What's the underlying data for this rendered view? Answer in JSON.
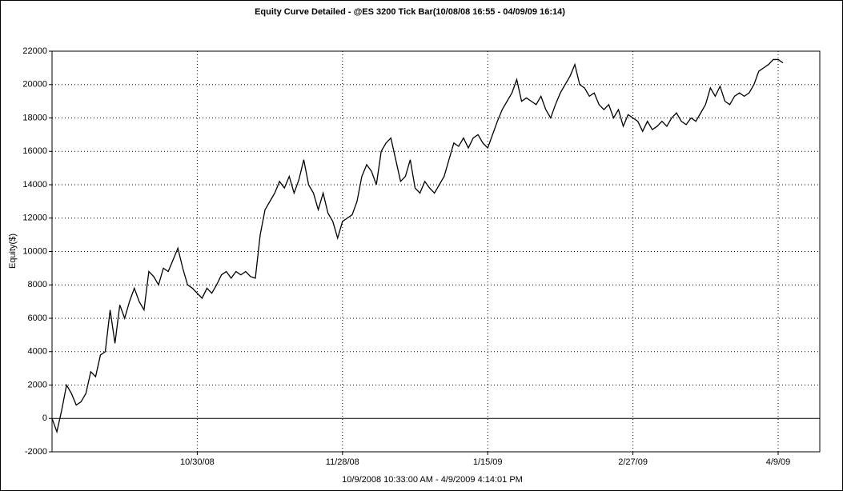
{
  "chart_data": {
    "type": "line",
    "title": "Equity Curve Detailed - @ES 3200 Tick Bar(10/08/08 16:55 - 04/09/09 16:14)",
    "x_label": "10/9/2008 10:33:00 AM - 4/9/2009 4:14:01 PM",
    "y_label": "Equity($)",
    "color": "#000000",
    "grid": true,
    "categories": [
      null,
      null,
      null,
      null,
      null,
      null,
      null,
      null,
      null,
      null,
      null,
      null,
      null,
      null,
      null,
      null,
      null,
      null,
      null,
      null,
      null,
      null,
      null,
      null,
      null,
      null,
      null,
      null,
      null,
      null,
      "10/30/08",
      null,
      null,
      null,
      null,
      null,
      null,
      null,
      null,
      null,
      null,
      null,
      null,
      null,
      null,
      null,
      null,
      null,
      null,
      null,
      null,
      null,
      null,
      null,
      null,
      null,
      null,
      null,
      null,
      null,
      "11/28/08",
      null,
      null,
      null,
      null,
      null,
      null,
      null,
      null,
      null,
      null,
      null,
      null,
      null,
      null,
      null,
      null,
      null,
      null,
      null,
      null,
      null,
      null,
      null,
      null,
      null,
      null,
      null,
      null,
      null,
      "1/15/09",
      null,
      null,
      null,
      null,
      null,
      null,
      null,
      null,
      null,
      null,
      null,
      null,
      null,
      null,
      null,
      null,
      null,
      null,
      null,
      null,
      null,
      null,
      null,
      null,
      null,
      null,
      null,
      null,
      null,
      "2/27/09",
      null,
      null,
      null,
      null,
      null,
      null,
      null,
      null,
      null,
      null,
      null,
      null,
      null,
      null,
      null,
      null,
      null,
      null,
      null,
      null,
      null,
      null,
      null,
      null,
      null,
      null,
      null,
      null,
      null,
      "4/9/09",
      null
    ],
    "values": [
      0,
      -800,
      500,
      2000,
      1500,
      800,
      1000,
      1500,
      2800,
      2500,
      3800,
      4000,
      6500,
      4500,
      6800,
      6000,
      7000,
      7800,
      7000,
      6500,
      8800,
      8500,
      8000,
      9000,
      8800,
      9500,
      10200,
      9000,
      8000,
      7800,
      7500,
      7200,
      7800,
      7500,
      8000,
      8600,
      8800,
      8400,
      8800,
      8600,
      8800,
      8500,
      8400,
      11000,
      12500,
      13000,
      13500,
      14200,
      13800,
      14500,
      13500,
      14300,
      15500,
      14000,
      13500,
      12500,
      13500,
      12300,
      11800,
      10800,
      11800,
      12000,
      12200,
      13000,
      14500,
      15200,
      14800,
      14000,
      16000,
      16500,
      16800,
      15500,
      14200,
      14500,
      15500,
      13800,
      13500,
      14200,
      13800,
      13500,
      14000,
      14500,
      15500,
      16500,
      16300,
      16800,
      16200,
      16800,
      17000,
      16500,
      16200,
      17000,
      17800,
      18500,
      19000,
      19500,
      20300,
      19000,
      19200,
      19000,
      18800,
      19300,
      18500,
      18000,
      18800,
      19500,
      20000,
      20500,
      21200,
      20000,
      19800,
      19300,
      19500,
      18800,
      18500,
      18800,
      18000,
      18500,
      17500,
      18200,
      18000,
      17800,
      17200,
      17800,
      17300,
      17500,
      17800,
      17500,
      18000,
      18300,
      17800,
      17600,
      18000,
      17800,
      18300,
      18800,
      19800,
      19300,
      19900,
      19000,
      18800,
      19300,
      19500,
      19300,
      19500,
      20000,
      20800,
      21000,
      21200,
      21500,
      21500,
      21300
    ],
    "ylim": [
      -2000,
      22000
    ],
    "yticks": [
      -2000,
      0,
      2000,
      4000,
      6000,
      8000,
      10000,
      12000,
      14000,
      16000,
      18000,
      20000,
      22000
    ]
  }
}
